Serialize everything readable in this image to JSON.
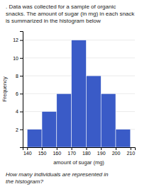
{
  "chart_data": {
    "type": "histogram",
    "title": ". Data was collected for a sample of organic snacks. The amount of sugar (in mg) in each snack is summarized in the histogram below",
    "annotations": [
      "How many individuals are represented in\nthe histogram?"
    ],
    "xlabel": "amount of sugar (mg)",
    "ylabel": "Frequency",
    "bins": [
      140,
      150,
      160,
      170,
      180,
      190,
      200,
      210
    ],
    "values": [
      2,
      4,
      6,
      12,
      8,
      6,
      2
    ],
    "color": "#3a5bc7",
    "xlim": [
      137,
      213
    ],
    "ylim": [
      0,
      13
    ],
    "xticks": [
      140,
      150,
      160,
      170,
      180,
      190,
      200,
      210
    ],
    "yticks": [
      2,
      4,
      6,
      8,
      10,
      12
    ],
    "grid": true
  }
}
